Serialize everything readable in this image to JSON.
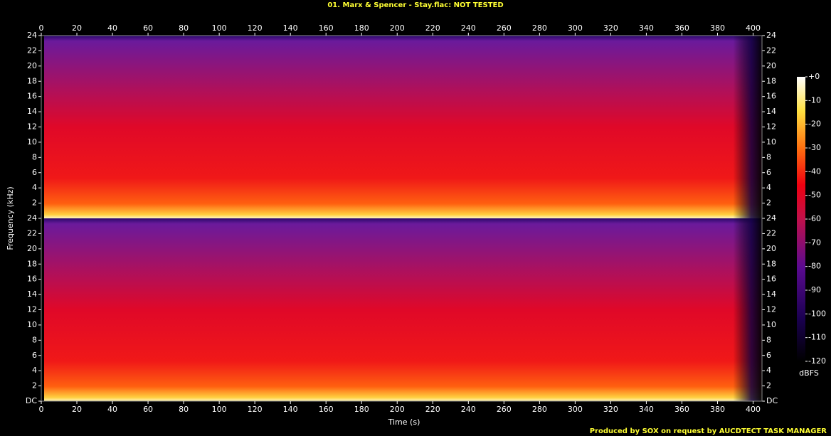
{
  "chart_data": {
    "type": "spectrogram",
    "title": "01. Marx & Spencer - Stay.flac: NOT TESTED",
    "x_label": "Time (s)",
    "y_label": "Frequency (kHz)",
    "xlim": [
      0,
      405
    ],
    "xticks": [
      0,
      20,
      40,
      60,
      80,
      100,
      120,
      140,
      160,
      180,
      200,
      220,
      240,
      260,
      280,
      300,
      320,
      340,
      360,
      380,
      400
    ],
    "ylim": [
      0,
      24
    ],
    "yticks": [
      {
        "value": 0,
        "label": "DC"
      },
      2,
      4,
      6,
      8,
      10,
      12,
      14,
      16,
      18,
      20,
      22,
      24
    ],
    "channels": 2,
    "colorbar": {
      "label": "dBFS",
      "lim": [
        -120,
        0
      ],
      "ticks": [
        {
          "value": 0,
          "label": "+0"
        },
        -10,
        -20,
        -30,
        -40,
        -50,
        -60,
        -70,
        -80,
        -90,
        -100,
        -110,
        -120
      ]
    },
    "credit": "Produced by SOX on request by AUCDTECT TASK MANAGER"
  }
}
